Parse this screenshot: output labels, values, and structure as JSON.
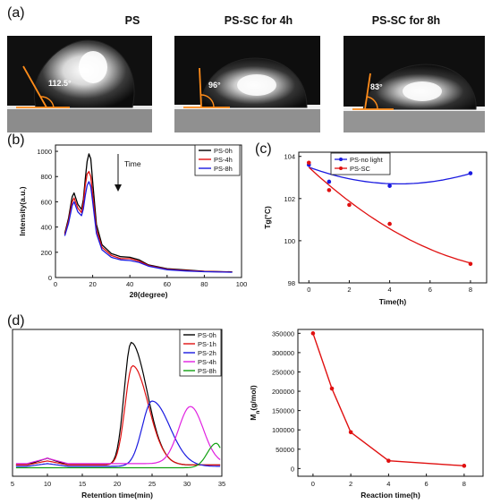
{
  "panel_a": {
    "letter": "(a)",
    "photos": [
      {
        "title": "PS",
        "angle": "112.5°"
      },
      {
        "title": "PS-SC for 4h",
        "angle": "96°"
      },
      {
        "title": "PS-SC for 8h",
        "angle": "83°"
      }
    ]
  },
  "panel_b": {
    "letter": "(b)",
    "annotation": "Time"
  },
  "panel_c": {
    "letter": "(c)"
  },
  "panel_d": {
    "letter": "(d)"
  },
  "colors": {
    "black": "#000000",
    "red": "#e01010",
    "blue": "#1a1ae0",
    "magenta": "#e020e0",
    "green": "#10a010",
    "fit_blue": "#1a1ae0",
    "contact_line": "#ff8c1a"
  },
  "chart_data": [
    {
      "id": "b",
      "type": "line",
      "xlabel": "2θ(degree)",
      "ylabel": "Intensity(a.u.)",
      "xlim": [
        0,
        100
      ],
      "ylim": [
        0,
        1050
      ],
      "xticks": [
        0,
        20,
        40,
        60,
        80,
        100
      ],
      "yticks": [
        0,
        200,
        400,
        600,
        800,
        1000
      ],
      "legend_position": "top-right",
      "x": [
        5,
        7,
        9,
        10,
        12,
        14,
        15,
        16,
        17,
        18,
        19,
        20,
        22,
        25,
        30,
        35,
        40,
        45,
        50,
        60,
        70,
        80,
        95
      ],
      "series": [
        {
          "name": "PS-0h",
          "color": "#000000",
          "values": [
            350,
            470,
            640,
            670,
            580,
            540,
            620,
            780,
            920,
            980,
            940,
            760,
            420,
            260,
            190,
            165,
            160,
            140,
            100,
            70,
            60,
            50,
            45
          ]
        },
        {
          "name": "PS-4h",
          "color": "#e01010",
          "values": [
            340,
            450,
            600,
            630,
            550,
            515,
            590,
            730,
            820,
            840,
            800,
            660,
            380,
            240,
            175,
            150,
            150,
            130,
            95,
            65,
            55,
            48,
            43
          ]
        },
        {
          "name": "PS-8h",
          "color": "#1a1ae0",
          "values": [
            330,
            430,
            570,
            600,
            520,
            490,
            545,
            650,
            730,
            760,
            720,
            600,
            350,
            220,
            160,
            140,
            135,
            120,
            90,
            62,
            52,
            46,
            42
          ]
        }
      ]
    },
    {
      "id": "c",
      "type": "scatter",
      "xlabel": "Time(h)",
      "ylabel": "Tg(°C)",
      "xlim": [
        -0.5,
        8.8
      ],
      "ylim": [
        98,
        104.2
      ],
      "xticks": [
        0,
        2,
        4,
        6,
        8
      ],
      "yticks": [
        98,
        100,
        102,
        104
      ],
      "legend_position": "top-left",
      "series": [
        {
          "name": "PS-no light",
          "color": "#1a1ae0",
          "x": [
            0,
            1,
            2,
            4,
            8
          ],
          "y": [
            103.6,
            102.8,
            103.3,
            102.6,
            103.2
          ]
        },
        {
          "name": "PS-SC",
          "color": "#e01010",
          "x": [
            0,
            1,
            2,
            4,
            8
          ],
          "y": [
            103.7,
            102.4,
            101.7,
            100.8,
            98.9
          ]
        }
      ]
    },
    {
      "id": "d-left",
      "type": "line",
      "xlabel": "Retention time(min)",
      "xlim": [
        5,
        35
      ],
      "xticks": [
        5,
        10,
        15,
        20,
        25,
        30,
        35
      ],
      "legend_position": "top-right",
      "series": [
        {
          "name": "PS-0h",
          "color": "#000000"
        },
        {
          "name": "PS-1h",
          "color": "#e01010"
        },
        {
          "name": "PS-2h",
          "color": "#1a1ae0"
        },
        {
          "name": "PS-4h",
          "color": "#e020e0"
        },
        {
          "name": "PS-8h",
          "color": "#10a010"
        }
      ]
    },
    {
      "id": "d-right",
      "type": "line",
      "xlabel": "Reaction time(h)",
      "ylabel": "Mn(g/mol)",
      "xlim": [
        -0.8,
        9
      ],
      "ylim": [
        -20000,
        360000
      ],
      "xticks": [
        0,
        2,
        4,
        6,
        8
      ],
      "yticks": [
        0,
        50000,
        100000,
        150000,
        200000,
        250000,
        300000,
        350000
      ],
      "series": [
        {
          "color": "#e01010",
          "x": [
            0,
            1,
            2,
            4,
            8
          ],
          "y": [
            350000,
            207000,
            94000,
            20000,
            7000
          ]
        }
      ]
    }
  ]
}
